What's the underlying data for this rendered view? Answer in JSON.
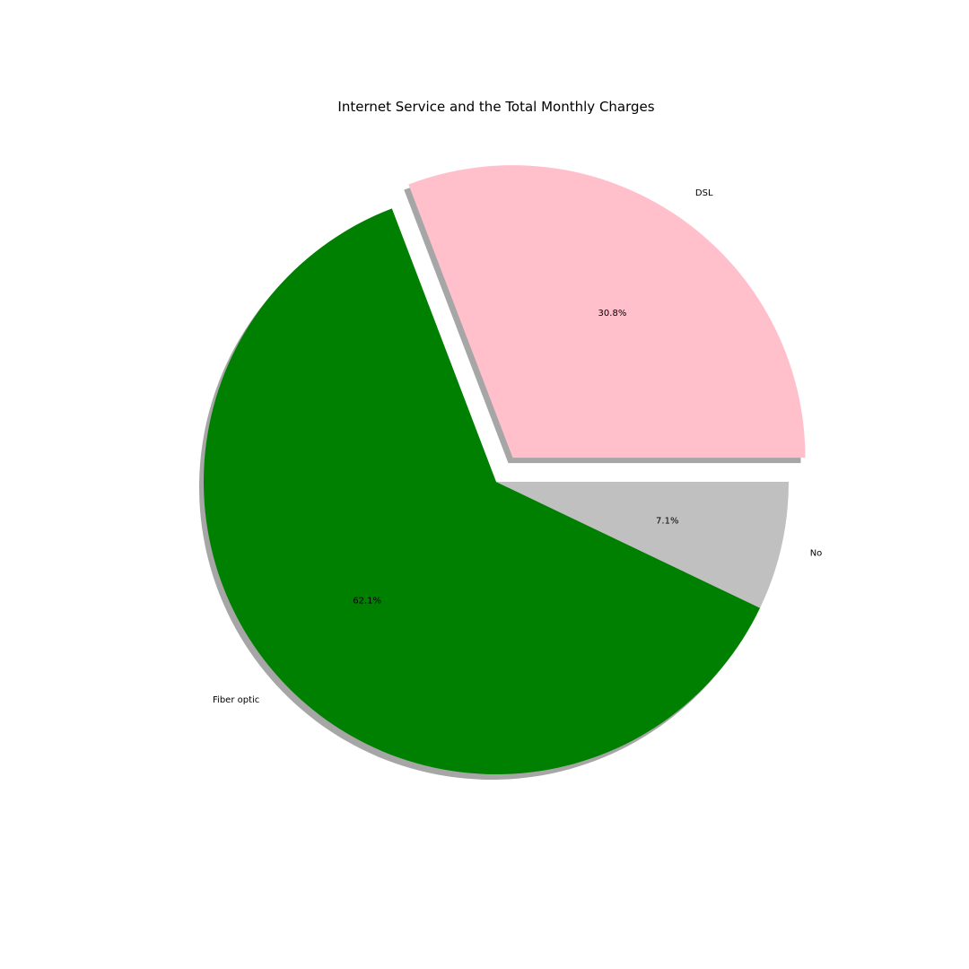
{
  "chart_data": {
    "type": "pie",
    "title": "Internet Service and the Total Monthly Charges",
    "slices": [
      {
        "label": "DSL",
        "value": 30.8,
        "pct_label": "30.8%",
        "color": "#ffc0cb",
        "exploded": true
      },
      {
        "label": "Fiber optic",
        "value": 62.1,
        "pct_label": "62.1%",
        "color": "#008000",
        "exploded": false
      },
      {
        "label": "No",
        "value": 7.1,
        "pct_label": "7.1%",
        "color": "#c0c0c0",
        "exploded": false
      }
    ],
    "start_angle_deg": 0,
    "direction": "counterclockwise",
    "shadow": true,
    "shadow_color": "#000000"
  }
}
